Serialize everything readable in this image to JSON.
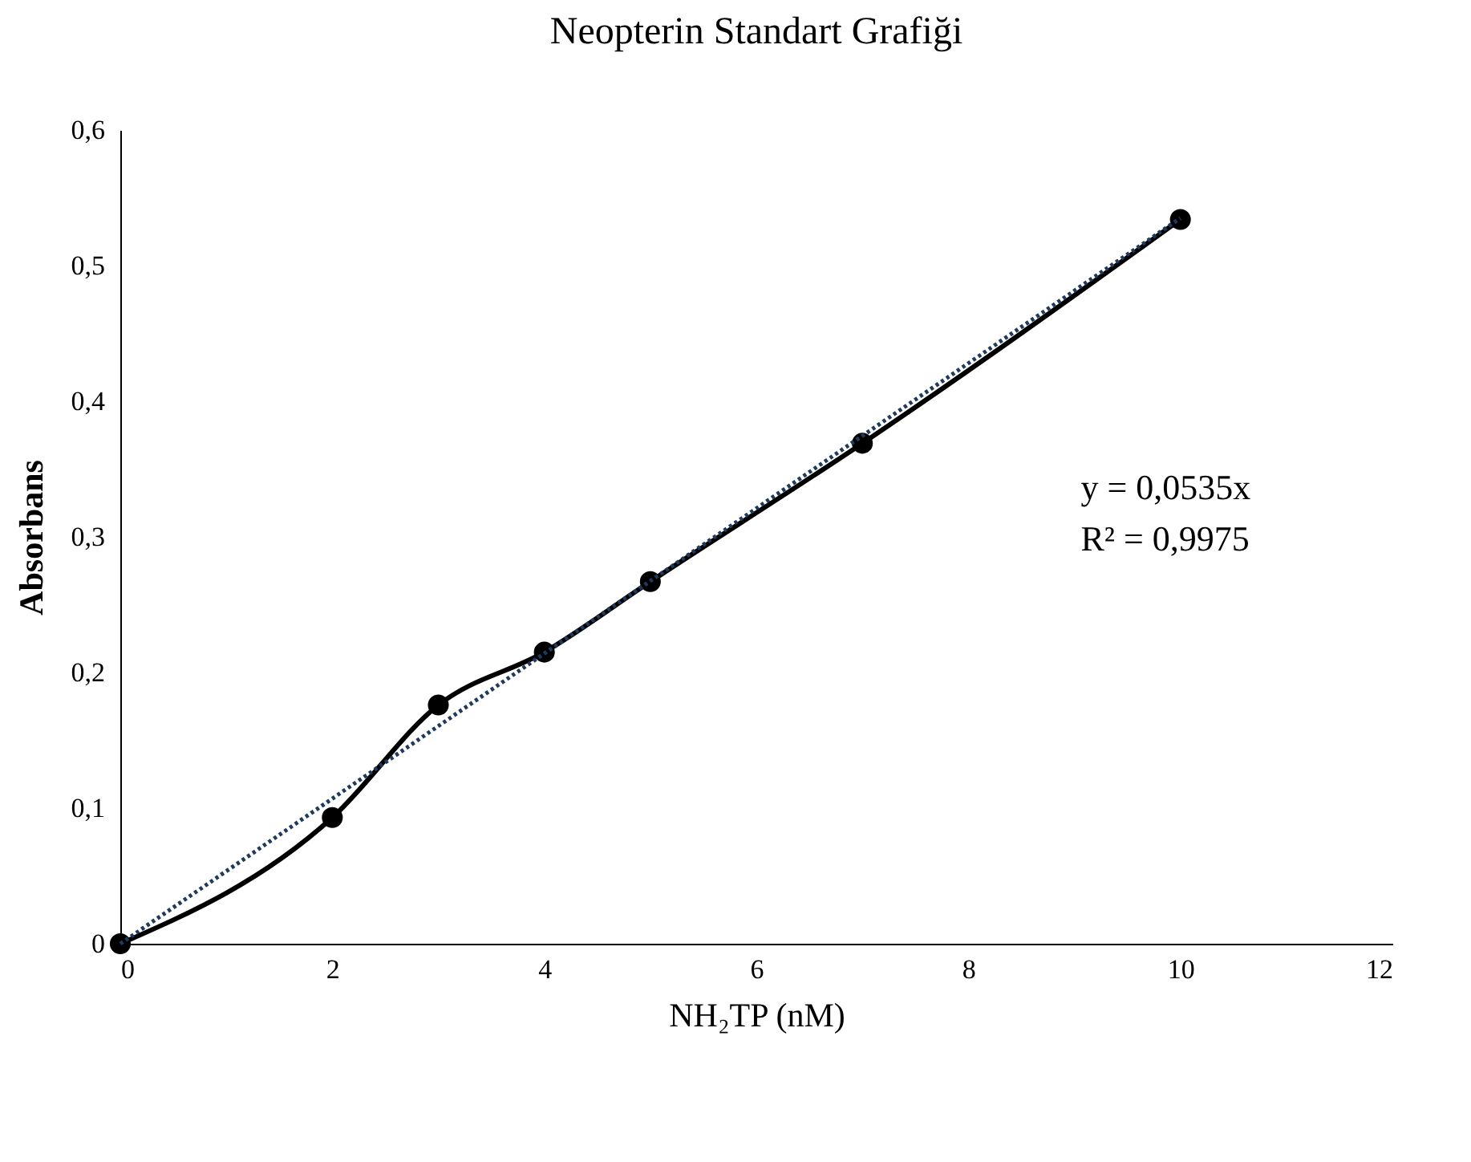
{
  "chart_data": {
    "type": "line",
    "title": "Neopterin Standart Grafiği",
    "xlabel": "NH₂TP (nM)",
    "ylabel": "Absorbans",
    "x": [
      0,
      2,
      3,
      4,
      5,
      7,
      10
    ],
    "series": [
      {
        "color": "#000000",
        "values": [
          0,
          0.093,
          0.176,
          0.215,
          0.267,
          0.369,
          0.534
        ],
        "marker": "circle",
        "line_style": "solid"
      },
      {
        "type": "line",
        "color": "#1f3a5f",
        "x": [
          0,
          10
        ],
        "values": [
          0,
          0.535
        ],
        "marker": "none",
        "line_style": "dotted"
      }
    ],
    "xlim": [
      0,
      12
    ],
    "xticks": [
      0,
      2,
      4,
      6,
      8,
      10,
      12
    ],
    "ylim": [
      0,
      0.6
    ],
    "yticks": [
      0,
      {
        "value": 0.1,
        "label": "0,1"
      },
      {
        "value": 0.2,
        "label": "0,2"
      },
      {
        "value": 0.3,
        "label": "0,3"
      },
      {
        "value": 0.4,
        "label": "0,4"
      },
      {
        "value": 0.5,
        "label": "0,5"
      },
      {
        "value": 0.6,
        "label": "0,6"
      }
    ],
    "annotations": [
      "y = 0,0535x",
      "R² = 0,9975"
    ],
    "grid": false
  }
}
